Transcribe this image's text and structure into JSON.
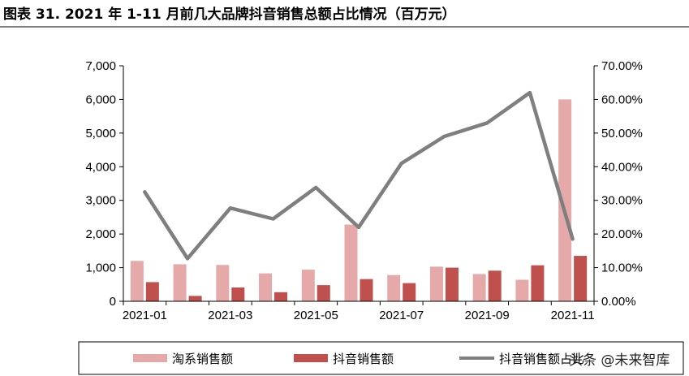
{
  "title": "图表 31. 2021 年 1-11 月前几大品牌抖音销售总额占比情况（百万元）",
  "watermark": "头条 @未来智库",
  "chart_data": {
    "type": "bar+line",
    "title": "图表 31. 2021 年 1-11 月前几大品牌抖音销售总额占比情况（百万元）",
    "categories": [
      "2021-01",
      "2021-02",
      "2021-03",
      "2021-04",
      "2021-05",
      "2021-06",
      "2021-07",
      "2021-08",
      "2021-09",
      "2021-10",
      "2021-11"
    ],
    "x_tick_labels": [
      "2021-01",
      "2021-03",
      "2021-05",
      "2021-07",
      "2021-09",
      "2021-11"
    ],
    "y_left": {
      "min": 0,
      "max": 7000,
      "step": 1000,
      "tick_labels": [
        "0",
        "1,000",
        "2,000",
        "3,000",
        "4,000",
        "5,000",
        "6,000",
        "7,000"
      ]
    },
    "y_right": {
      "min": 0,
      "max": 0.7,
      "step": 0.1,
      "tick_labels": [
        "0.00%",
        "10.00%",
        "20.00%",
        "30.00%",
        "40.00%",
        "50.00%",
        "60.00%",
        "70.00%"
      ]
    },
    "series": [
      {
        "name": "淘系销售额",
        "type": "bar",
        "axis": "left",
        "color": "#e6a9aa",
        "values": [
          1200,
          1100,
          1080,
          830,
          940,
          2280,
          780,
          1030,
          810,
          640,
          6000
        ]
      },
      {
        "name": "抖音销售额",
        "type": "bar",
        "axis": "left",
        "color": "#c0504d",
        "values": [
          570,
          160,
          410,
          270,
          480,
          660,
          540,
          1000,
          910,
          1070,
          1350
        ]
      },
      {
        "name": "抖音销售额占比",
        "type": "line",
        "axis": "right",
        "color": "#7f7f7f",
        "values": [
          0.325,
          0.127,
          0.277,
          0.245,
          0.338,
          0.22,
          0.41,
          0.49,
          0.53,
          0.62,
          0.185
        ]
      }
    ],
    "legend_labels": [
      "淘系销售额",
      "抖音销售额",
      "抖音销售额占比"
    ],
    "legend_position": "bottom",
    "grid": false
  }
}
